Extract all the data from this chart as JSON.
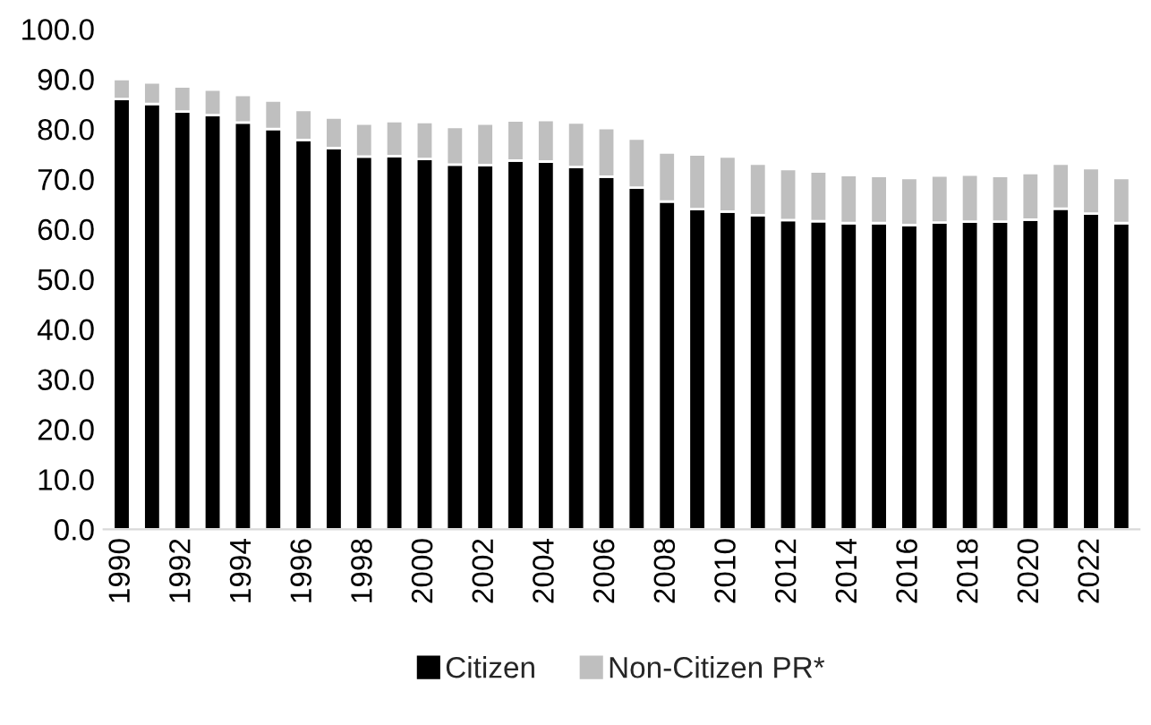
{
  "chart_data": {
    "type": "bar",
    "stacked": true,
    "categories": [
      "1990",
      null,
      "1992",
      null,
      "1994",
      null,
      "1996",
      null,
      "1998",
      null,
      "2000",
      null,
      "2002",
      null,
      "2004",
      null,
      "2006",
      null,
      "2008",
      null,
      "2010",
      null,
      "2012",
      null,
      "2014",
      null,
      "2016",
      null,
      "2018",
      null,
      "2020",
      null,
      "2022",
      null
    ],
    "series": [
      {
        "name": "Citizen",
        "color": "#000000",
        "values": [
          86.0,
          85.0,
          83.5,
          82.8,
          81.3,
          80.0,
          77.8,
          76.2,
          74.5,
          74.6,
          74.0,
          72.9,
          72.8,
          73.7,
          73.5,
          72.4,
          70.5,
          68.3,
          65.5,
          64.0,
          63.5,
          62.8,
          61.8,
          61.6,
          61.2,
          61.2,
          60.8,
          61.3,
          61.5,
          61.5,
          61.9,
          64.1,
          63.1,
          61.2
        ]
      },
      {
        "name": "Non-Citizen PR*",
        "color": "#bfbfbf",
        "values": [
          4.0,
          4.3,
          5.0,
          5.1,
          5.5,
          5.7,
          6.0,
          6.1,
          6.6,
          7.0,
          7.4,
          7.5,
          8.3,
          8.0,
          8.3,
          8.9,
          9.7,
          9.8,
          9.8,
          10.9,
          11.0,
          10.3,
          10.2,
          9.9,
          9.6,
          9.4,
          9.4,
          9.4,
          9.4,
          9.1,
          9.3,
          9.0,
          9.1,
          9.0
        ]
      }
    ],
    "ylim": [
      0,
      100
    ],
    "yticks": [
      {
        "value": 0,
        "label": "0.0"
      },
      {
        "value": 10,
        "label": "10.0"
      },
      {
        "value": 20,
        "label": "20.0"
      },
      {
        "value": 30,
        "label": "30.0"
      },
      {
        "value": 40,
        "label": "40.0"
      },
      {
        "value": 50,
        "label": "50.0"
      },
      {
        "value": 60,
        "label": "60.0"
      },
      {
        "value": 70,
        "label": "70.0"
      },
      {
        "value": 80,
        "label": "80.0"
      },
      {
        "value": 90,
        "label": "90.0"
      },
      {
        "value": 100,
        "label": "100.0"
      }
    ],
    "grid": false,
    "legend": "bottom"
  }
}
